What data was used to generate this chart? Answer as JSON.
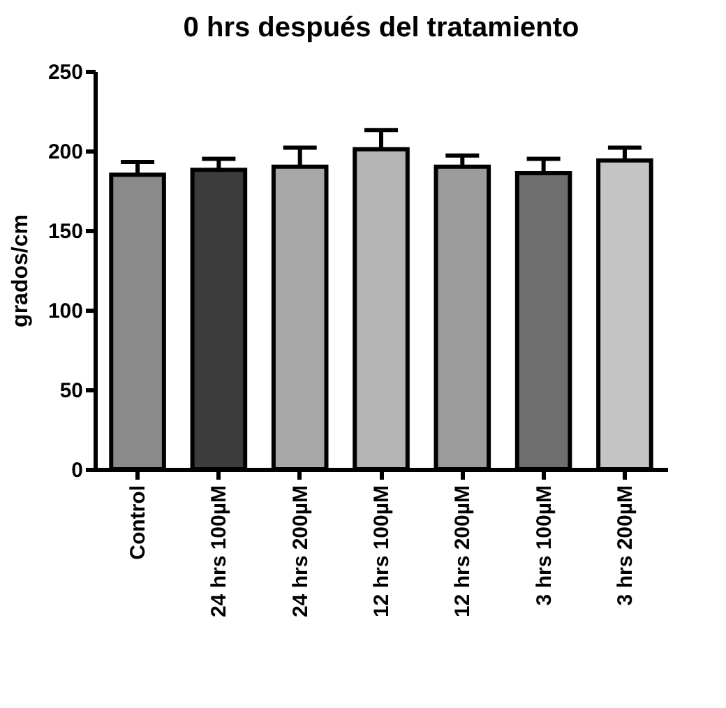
{
  "chart_data": {
    "type": "bar",
    "title": "0 hrs después del tratamiento",
    "ylabel": "grados/cm",
    "categories": [
      "Control",
      "24 hrs 100µM",
      "24 hrs 200µM",
      "12 hrs 100µM",
      "12 hrs 200µM",
      "3 hrs 100µM",
      "3 hrs 200µM"
    ],
    "values": [
      185,
      188,
      190,
      201,
      190,
      186,
      194
    ],
    "errors": [
      [
        185,
        193
      ],
      [
        188,
        195
      ],
      [
        190,
        202
      ],
      [
        201,
        213
      ],
      [
        190,
        197
      ],
      [
        186,
        195
      ],
      [
        194,
        202
      ]
    ],
    "colors": [
      "#8a8a8a",
      "#3c3c3c",
      "#a8a8a8",
      "#b4b4b4",
      "#9c9c9c",
      "#6e6e6e",
      "#c4c4c4"
    ],
    "ylim": [
      0,
      250
    ],
    "yticks": [
      0,
      50,
      100,
      150,
      200,
      250
    ],
    "grid": false
  }
}
